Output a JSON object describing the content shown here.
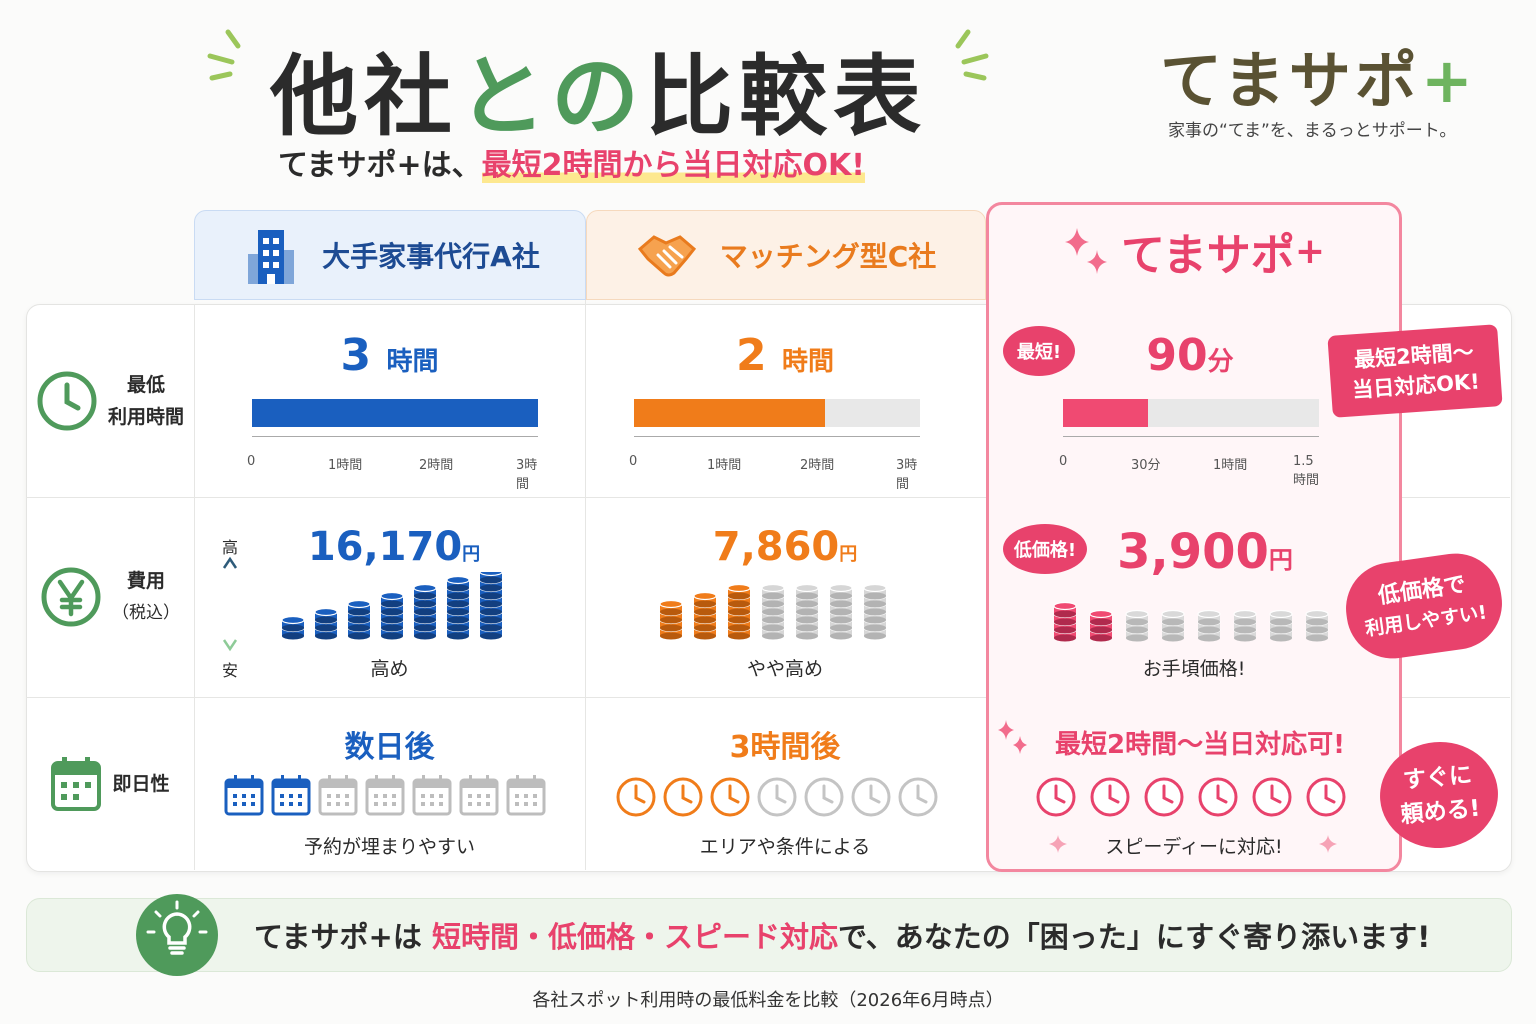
{
  "header": {
    "title_a": "他社",
    "title_b": "との",
    "title_c": "比較表",
    "subtitle_a": "てまサポ+は、",
    "subtitle_b": "最短2時間から当日対応OK!"
  },
  "brand": {
    "name": "てまサポ",
    "plus": "+",
    "tagline": "家事の“てま”を、まるっとサポート。"
  },
  "columns": {
    "a": {
      "name": "大手家事代行A社",
      "icon": "building-icon",
      "color": "#1a5fbf"
    },
    "c": {
      "name": "マッチング型C社",
      "icon": "handshake-icon",
      "color": "#f07c1a"
    },
    "t": {
      "name": "てまサポ",
      "plus": "+",
      "icon": "sparkle-icon",
      "color": "#e8426c"
    }
  },
  "rows": {
    "time": {
      "label1": "最低",
      "label2": "利用時間",
      "icon": "clock-icon",
      "a": {
        "value": "3",
        "unit": "時間",
        "fill": 1.0,
        "ticks": [
          "0",
          "1時間",
          "2時間",
          "3時間"
        ]
      },
      "c": {
        "value": "2",
        "unit": "時間",
        "fill": 0.667,
        "ticks": [
          "0",
          "1時間",
          "2時間",
          "3時間"
        ]
      },
      "t": {
        "value": "90",
        "unit": "分",
        "fill": 0.333,
        "ticks": [
          "0",
          "30分",
          "1時間",
          "1.5時間"
        ],
        "bubble": "最短!"
      },
      "sticker1": "最短2時間〜",
      "sticker2": "当日対応OK!"
    },
    "cost": {
      "label1": "費用",
      "label2": "（税込）",
      "icon": "yen-icon",
      "axis_high": "高",
      "axis_low": "安",
      "a": {
        "value": "16,170",
        "unit": "円",
        "coins_filled": 7,
        "caption": "高め"
      },
      "c": {
        "value": "7,860",
        "unit": "円",
        "coins_filled": 3,
        "caption": "やや高め"
      },
      "t": {
        "value": "3,900",
        "unit": "円",
        "coins_filled": 2,
        "caption": "お手頃価格!",
        "bubble": "低価格!"
      },
      "sticker1": "低価格で",
      "sticker2": "利用しやすい!"
    },
    "speed": {
      "label1": "即日性",
      "icon": "calendar-icon",
      "a": {
        "value": "数日後",
        "filled": 2,
        "caption": "予約が埋まりやすい"
      },
      "c": {
        "value": "3時間後",
        "filled": 3,
        "caption": "エリアや条件による"
      },
      "t": {
        "value": "最短2時間〜当日対応可!",
        "filled": 6,
        "caption": "スピーディーに対応!"
      },
      "sticker1": "すぐに",
      "sticker2": "頼める!"
    }
  },
  "footer": {
    "icon": "lightbulb-icon",
    "text_a": "てまサポ+は ",
    "text_b": "短時間・低価格・スピード対応",
    "text_c": "で、あなたの「困った」にすぐ寄り添います!"
  },
  "note": "各社スポット利用時の最低料金を比較（2026年6月時点）"
}
